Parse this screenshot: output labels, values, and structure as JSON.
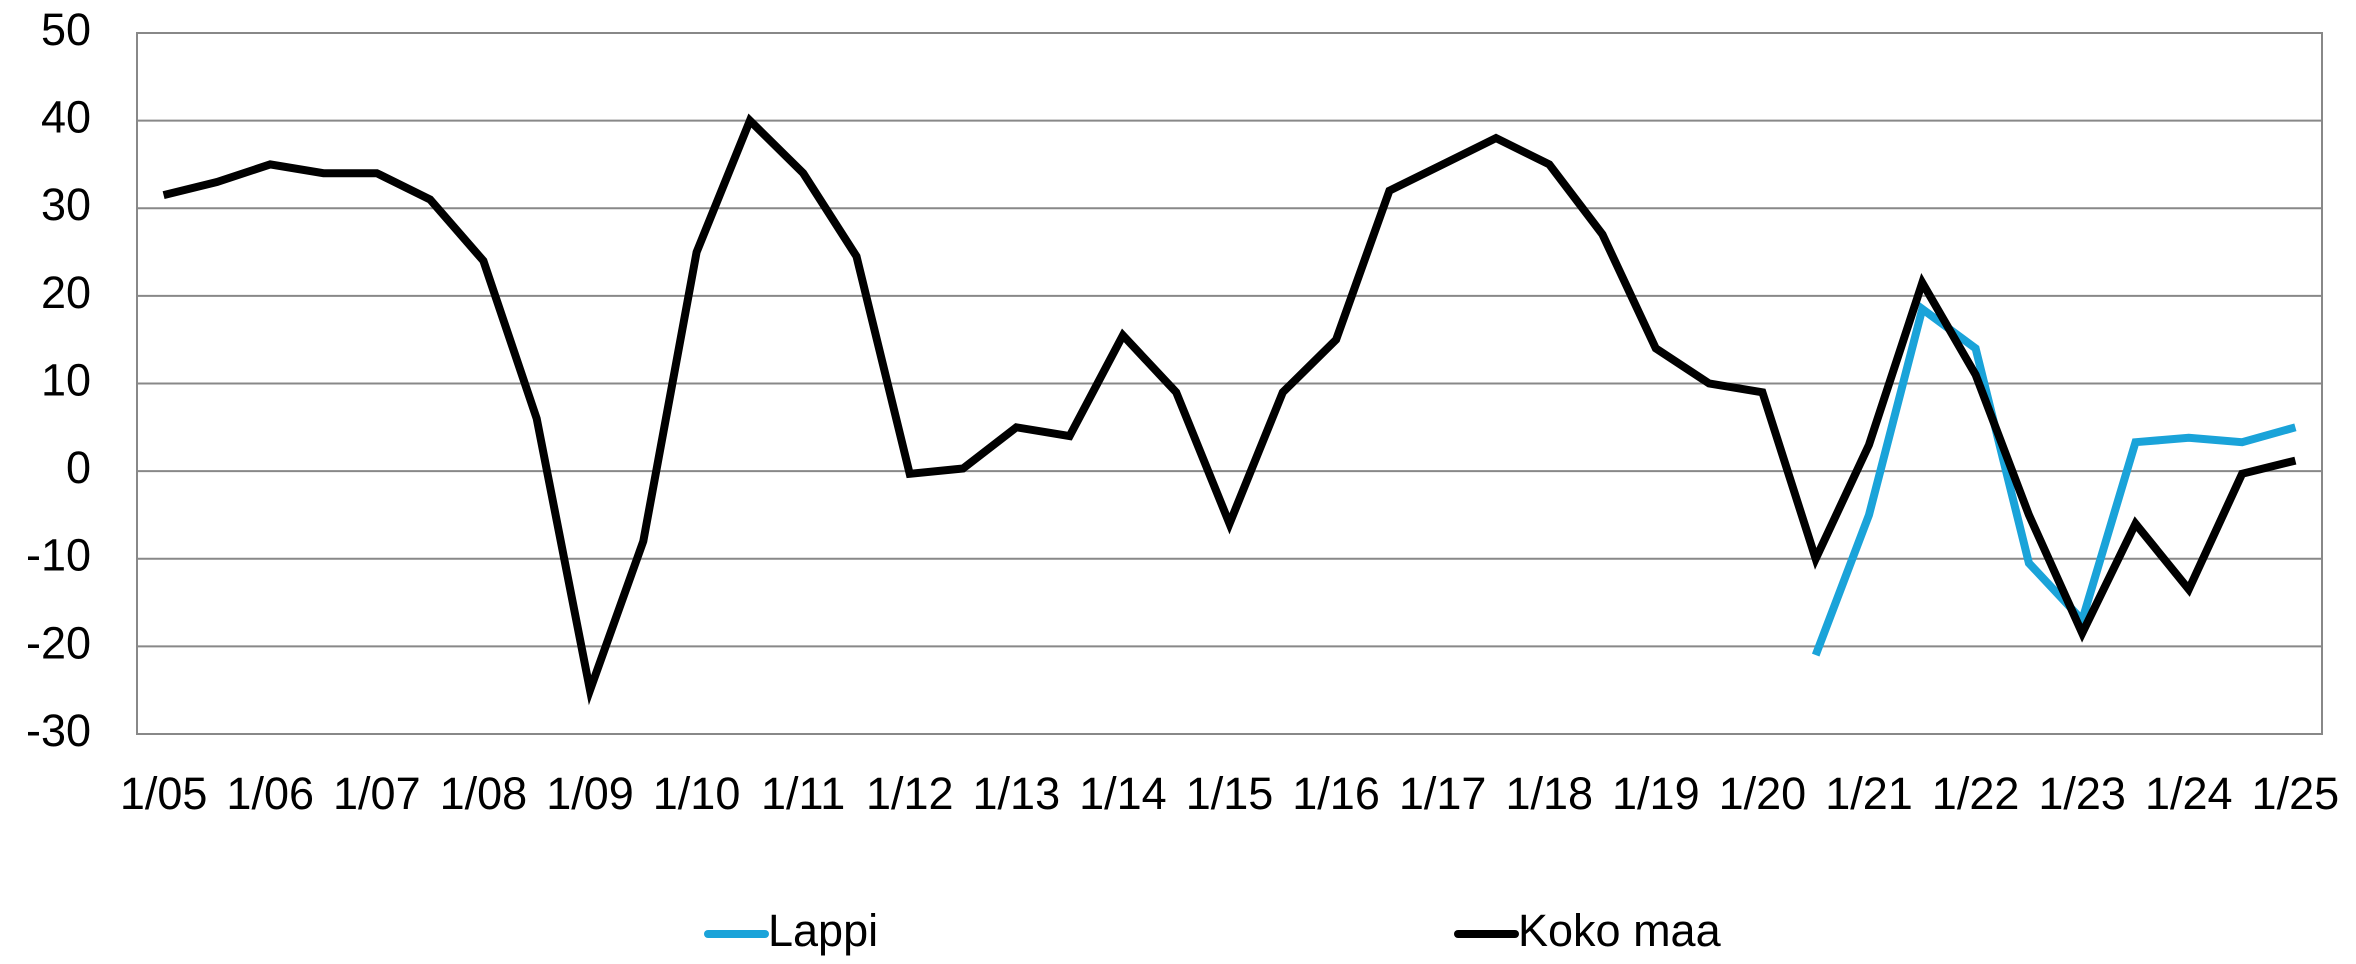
{
  "chart_data": {
    "type": "line",
    "categories": [
      "1/05",
      null,
      "1/06",
      null,
      "1/07",
      null,
      "1/08",
      null,
      "1/09",
      null,
      "1/10",
      null,
      "1/11",
      null,
      "1/12",
      null,
      "1/13",
      null,
      "1/14",
      null,
      "1/15",
      null,
      "1/16",
      null,
      "1/17",
      null,
      "1/18",
      null,
      "1/19",
      null,
      "1/20",
      null,
      "1/21",
      null,
      "1/22",
      null,
      "1/23",
      null,
      "1/24",
      null,
      "1/25"
    ],
    "series": [
      {
        "name": "Lappi",
        "color": "#1aa3d9",
        "values": [
          null,
          null,
          null,
          null,
          null,
          null,
          null,
          null,
          null,
          null,
          null,
          null,
          null,
          null,
          null,
          null,
          null,
          null,
          null,
          null,
          null,
          null,
          null,
          null,
          null,
          null,
          null,
          null,
          null,
          null,
          null,
          -21,
          -5,
          18.5,
          14,
          -10.5,
          -17,
          3.3,
          3.8,
          3.3,
          5
        ]
      },
      {
        "name": "Koko maa",
        "color": "#000000",
        "values": [
          31.5,
          33,
          35,
          34,
          34,
          31,
          24,
          6,
          -25,
          -8,
          25,
          40,
          34,
          24.5,
          -0.3,
          0.3,
          5,
          4,
          15.5,
          9,
          -6,
          9,
          15,
          32,
          35,
          38,
          35,
          27,
          14,
          10,
          9,
          -10,
          3,
          21.5,
          11,
          -5,
          -18.5,
          -6,
          -13.5,
          -0.3,
          1.2
        ]
      }
    ],
    "ylim": [
      -30,
      50
    ],
    "yticks": [
      -30,
      -20,
      -10,
      0,
      10,
      20,
      30,
      40,
      50
    ],
    "grid": true,
    "legend": "bottom"
  }
}
